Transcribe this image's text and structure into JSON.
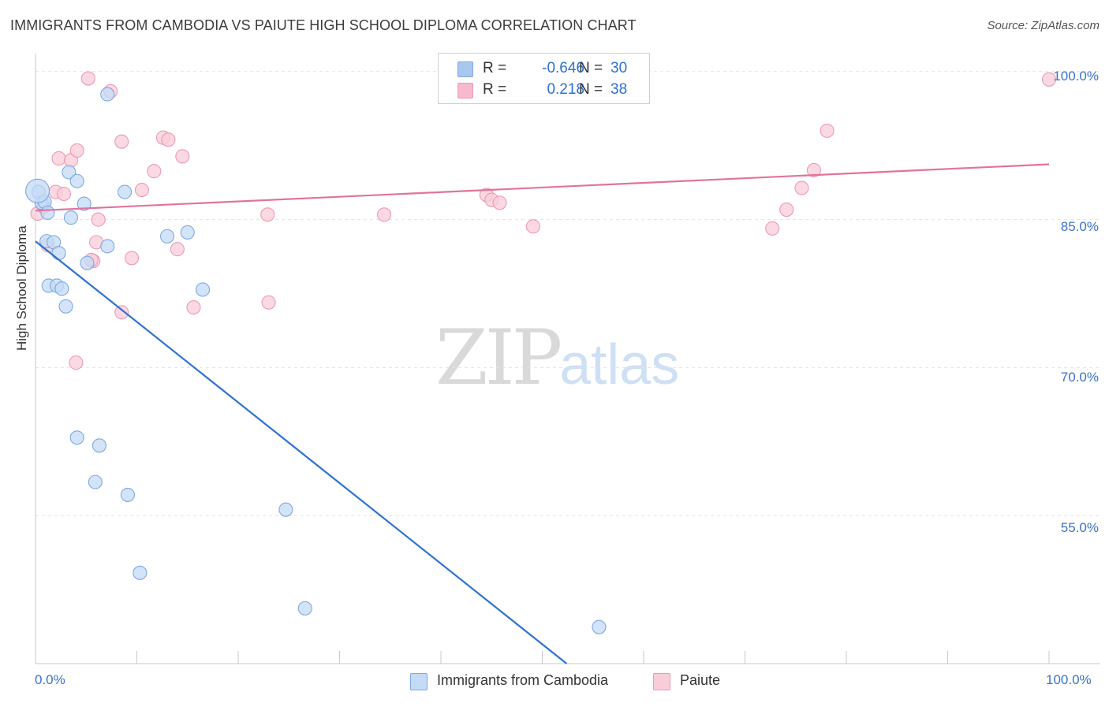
{
  "header": {
    "title": "IMMIGRANTS FROM CAMBODIA VS PAIUTE HIGH SCHOOL DIPLOMA CORRELATION CHART",
    "source": "Source: ZipAtlas.com"
  },
  "watermark": {
    "zip": "ZIP",
    "atlas": "atlas"
  },
  "legend": {
    "rows": [
      {
        "r_label": "R =",
        "r_value": "-0.646",
        "n_label": "N =",
        "n_value": "30",
        "color": "#a9c8f0"
      },
      {
        "r_label": "R =",
        "r_value": "0.218",
        "n_label": "N =",
        "n_value": "38",
        "color": "#f7b9cc"
      }
    ]
  },
  "bottom_legend": {
    "cambodia": "Immigrants from Cambodia",
    "paiute": "Paiute"
  },
  "colors": {
    "cambodia_fill": "#c4dbf6",
    "cambodia_stroke": "#7ea8e0",
    "cambodia_line": "#2d72d2",
    "paiute_fill": "#f9ccd9",
    "paiute_stroke": "#ec9ab4",
    "paiute_line": "#e2739a",
    "grid": "#e3e3e3"
  },
  "chart_data": {
    "type": "scatter",
    "title": "IMMIGRANTS FROM CAMBODIA VS PAIUTE HIGH SCHOOL DIPLOMA CORRELATION CHART",
    "xlabel": "",
    "ylabel": "High School Diploma",
    "xlim": [
      0,
      100
    ],
    "ylim": [
      40,
      101.5
    ],
    "x_tick_labels": {
      "left": "0.0%",
      "right": "100.0%"
    },
    "y_ticks": [
      {
        "value": 100,
        "label": "100.0%"
      },
      {
        "value": 85,
        "label": "85.0%"
      },
      {
        "value": 70,
        "label": "70.0%"
      },
      {
        "value": 55,
        "label": "55.0%"
      }
    ],
    "series": [
      {
        "name": "Immigrants from Cambodia",
        "R": -0.646,
        "N": 30,
        "points": [
          [
            0.3,
            87.8
          ],
          [
            0.6,
            86.7
          ],
          [
            0.9,
            86.8
          ],
          [
            1.2,
            85.7
          ],
          [
            1.1,
            82.8
          ],
          [
            1.8,
            82.7
          ],
          [
            2.3,
            81.6
          ],
          [
            1.3,
            78.3
          ],
          [
            2.1,
            78.3
          ],
          [
            2.6,
            78.0
          ],
          [
            3.0,
            76.2
          ],
          [
            3.5,
            85.2
          ],
          [
            3.3,
            89.8
          ],
          [
            4.1,
            88.9
          ],
          [
            4.8,
            86.6
          ],
          [
            5.1,
            80.6
          ],
          [
            7.1,
            97.7
          ],
          [
            7.1,
            82.3
          ],
          [
            8.8,
            87.8
          ],
          [
            13.0,
            83.3
          ],
          [
            15.0,
            83.7
          ],
          [
            16.5,
            77.9
          ],
          [
            4.1,
            62.9
          ],
          [
            6.3,
            62.1
          ],
          [
            5.9,
            58.4
          ],
          [
            9.1,
            57.1
          ],
          [
            10.3,
            49.2
          ],
          [
            24.7,
            55.6
          ],
          [
            26.6,
            45.6
          ],
          [
            55.6,
            43.7
          ]
        ],
        "trend": {
          "x0": 0,
          "y0": 82.8,
          "x1": 52.4,
          "y1": 40
        }
      },
      {
        "name": "Paiute",
        "R": 0.218,
        "N": 38,
        "points": [
          [
            0.2,
            85.6
          ],
          [
            0.8,
            86.3
          ],
          [
            1.2,
            82.4
          ],
          [
            2.0,
            87.8
          ],
          [
            2.3,
            91.2
          ],
          [
            2.8,
            87.6
          ],
          [
            3.5,
            91.0
          ],
          [
            4.1,
            92.0
          ],
          [
            5.2,
            99.3
          ],
          [
            6.2,
            85.0
          ],
          [
            6.0,
            82.7
          ],
          [
            5.7,
            80.8
          ],
          [
            7.4,
            98.0
          ],
          [
            8.5,
            92.9
          ],
          [
            8.5,
            75.6
          ],
          [
            9.5,
            81.1
          ],
          [
            10.5,
            88.0
          ],
          [
            11.7,
            89.9
          ],
          [
            12.6,
            93.3
          ],
          [
            13.1,
            93.1
          ],
          [
            14.0,
            82.0
          ],
          [
            14.5,
            91.4
          ],
          [
            15.6,
            76.1
          ],
          [
            23.0,
            76.6
          ],
          [
            22.9,
            85.5
          ],
          [
            5.5,
            80.9
          ],
          [
            4.0,
            70.5
          ],
          [
            34.4,
            85.5
          ],
          [
            44.5,
            87.5
          ],
          [
            45.0,
            87.0
          ],
          [
            45.8,
            86.7
          ],
          [
            49.1,
            84.3
          ],
          [
            72.7,
            84.1
          ],
          [
            74.1,
            86.0
          ],
          [
            75.6,
            88.2
          ],
          [
            76.8,
            90.0
          ],
          [
            78.1,
            94.0
          ],
          [
            100.0,
            99.2
          ]
        ],
        "trend": {
          "x0": 0,
          "y0": 85.9,
          "x1": 100,
          "y1": 90.6
        }
      }
    ]
  }
}
